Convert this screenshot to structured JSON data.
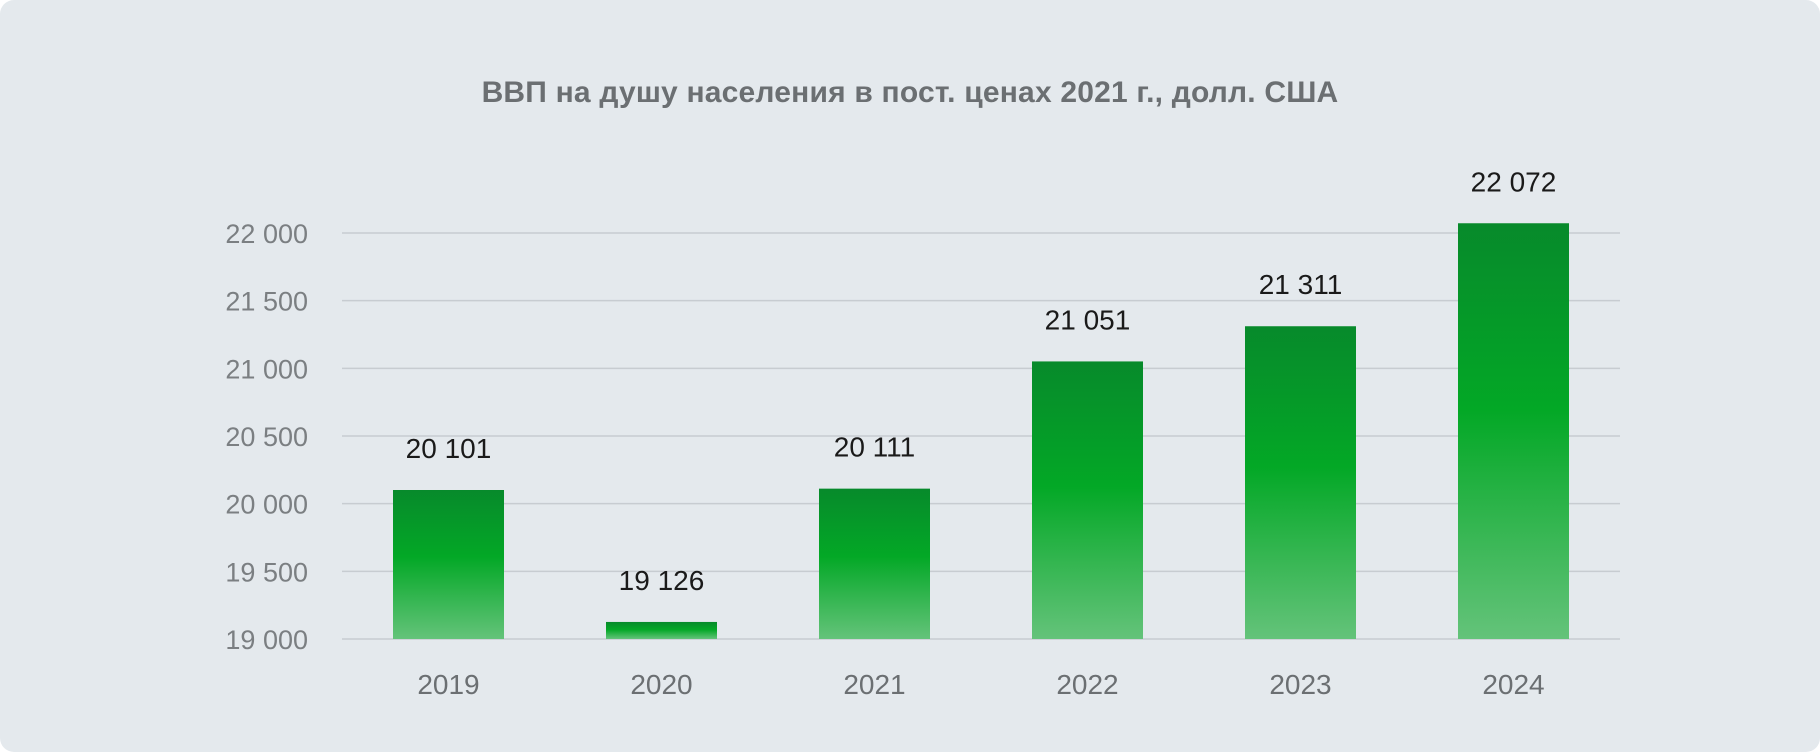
{
  "chart_data": {
    "type": "bar",
    "title": "ВВП на душу населения в пост. ценах 2021 г., долл. США",
    "categories": [
      "2019",
      "2020",
      "2021",
      "2022",
      "2023",
      "2024"
    ],
    "values": [
      20101,
      19126,
      20111,
      21051,
      21311,
      22072
    ],
    "value_labels": [
      "20 101",
      "19 126",
      "20 111",
      "21 051",
      "21 311",
      "22 072"
    ],
    "ylim": [
      19000,
      22000
    ],
    "yticks": [
      19000,
      19500,
      20000,
      20500,
      21000,
      21500,
      22000
    ],
    "ytick_labels": [
      "19 000",
      "19 500",
      "20 000",
      "20 500",
      "21 000",
      "21 500",
      "22 000"
    ],
    "xlabel": "",
    "ylabel": "",
    "grid": true,
    "legend": "none",
    "colors": {
      "bar_top": "#078a2b",
      "bar_mid": "#03a826",
      "bar_bottom": "#64c37a",
      "background": "#e4e9ed"
    }
  }
}
